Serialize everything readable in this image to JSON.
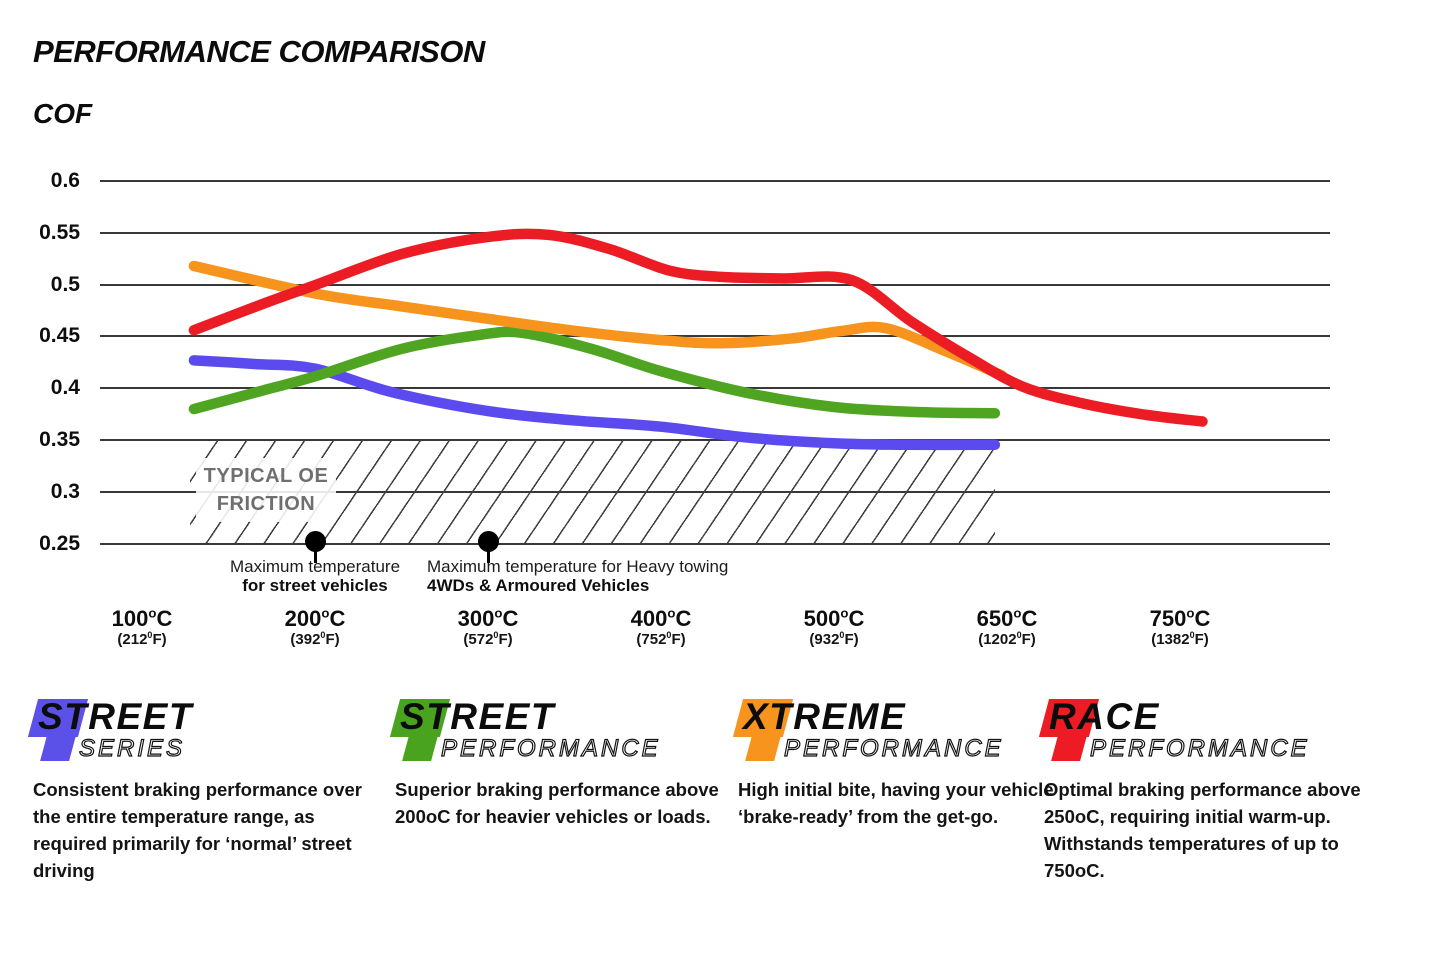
{
  "page": {
    "title": "PERFORMANCE COMPARISON",
    "y_axis_heading": "COF"
  },
  "chart_data": {
    "type": "line",
    "title": "PERFORMANCE COMPARISON",
    "ylabel": "COF",
    "ylim": [
      0.25,
      0.6
    ],
    "grid": "horizontal",
    "yticks": [
      "0.6",
      "0.55",
      "0.5",
      "0.45",
      "0.4",
      "0.35",
      "0.3",
      "0.25"
    ],
    "ytick_values": [
      0.6,
      0.55,
      0.5,
      0.45,
      0.4,
      0.35,
      0.3,
      0.25
    ],
    "x_categories": [
      {
        "c": "100",
        "f": "212"
      },
      {
        "c": "200",
        "f": "392"
      },
      {
        "c": "300",
        "f": "572"
      },
      {
        "c": "400",
        "f": "752"
      },
      {
        "c": "500",
        "f": "932"
      },
      {
        "c": "650",
        "f": "1202"
      },
      {
        "c": "750",
        "f": "1382"
      }
    ],
    "deg_c_glyph": "o",
    "deg_f_glyph": "0",
    "point_units": "[x_category_index, COF] where index 0=100C,1=200C,2=300C,3=400C,4=500C,5=650C,6=750C",
    "series": [
      {
        "name": "Street Series",
        "color": "#5b4bef",
        "points": [
          [
            0.3,
            0.427
          ],
          [
            0.65,
            0.4235
          ],
          [
            1.0,
            0.419
          ],
          [
            1.45,
            0.396
          ],
          [
            2.0,
            0.378
          ],
          [
            2.5,
            0.369
          ],
          [
            3.0,
            0.363
          ],
          [
            3.5,
            0.3525
          ],
          [
            4.0,
            0.347
          ],
          [
            4.4,
            0.3455
          ],
          [
            4.93,
            0.3455
          ]
        ]
      },
      {
        "name": "Street Performance",
        "color": "#4fa521",
        "points": [
          [
            0.3,
            0.38
          ],
          [
            0.7,
            0.398
          ],
          [
            1.0,
            0.4115
          ],
          [
            1.5,
            0.438
          ],
          [
            1.95,
            0.4515
          ],
          [
            2.2,
            0.4535
          ],
          [
            2.6,
            0.438
          ],
          [
            3.0,
            0.4165
          ],
          [
            3.5,
            0.3955
          ],
          [
            4.0,
            0.382
          ],
          [
            4.5,
            0.377
          ],
          [
            4.93,
            0.376
          ]
        ]
      },
      {
        "name": "Xtreme Performance",
        "color": "#f7941d",
        "points": [
          [
            0.3,
            0.518
          ],
          [
            1.0,
            0.4915
          ],
          [
            1.5,
            0.479
          ],
          [
            2.0,
            0.467
          ],
          [
            2.5,
            0.4555
          ],
          [
            3.0,
            0.4465
          ],
          [
            3.35,
            0.4435
          ],
          [
            3.75,
            0.448
          ],
          [
            4.05,
            0.4555
          ],
          [
            4.3,
            0.458
          ],
          [
            4.65,
            0.4355
          ],
          [
            4.97,
            0.4125
          ]
        ]
      },
      {
        "name": "Race Performance",
        "color": "#ec1c24",
        "points": [
          [
            0.3,
            0.456
          ],
          [
            0.7,
            0.4815
          ],
          [
            1.0,
            0.4995
          ],
          [
            1.5,
            0.5295
          ],
          [
            2.0,
            0.546
          ],
          [
            2.35,
            0.548
          ],
          [
            2.7,
            0.5345
          ],
          [
            3.05,
            0.5135
          ],
          [
            3.35,
            0.5075
          ],
          [
            3.7,
            0.506
          ],
          [
            4.1,
            0.5045
          ],
          [
            4.45,
            0.464
          ],
          [
            4.8,
            0.428
          ],
          [
            5.1,
            0.401
          ],
          [
            5.45,
            0.385
          ],
          [
            5.8,
            0.3745
          ],
          [
            6.13,
            0.368
          ]
        ]
      }
    ],
    "oe_zone": {
      "label_line1": "TYPICAL OE",
      "label_line2": "FRICTION",
      "cof_from": 0.25,
      "cof_to": 0.35,
      "x_from_index": 0.28,
      "x_to_index": 4.93
    },
    "markers": [
      {
        "at_index": 1,
        "cof": 0.25,
        "line1": "Maximum temperature",
        "line2": "for street vehicles",
        "align": "center"
      },
      {
        "at_index": 2,
        "cof": 0.25,
        "line1": "Maximum temperature for Heavy towing",
        "line2": "4WDs & Armoured Vehicles",
        "align": "left"
      }
    ],
    "legend_position": "bottom"
  },
  "legend": [
    {
      "word1": "STREET",
      "word2": "SERIES",
      "color": "#5b51e8",
      "description": "Consistent braking performance over the entire temperature range, as required primarily for ‘normal’ street driving"
    },
    {
      "word1": "STREET",
      "word2": "PERFORMANCE",
      "color": "#4aa31e",
      "description": "Superior braking performance above 200oC for heavier vehicles or loads."
    },
    {
      "word1": "XTREME",
      "word2": "PERFORMANCE",
      "color": "#f7941d",
      "description": "High initial bite, having your vehicle ‘brake-ready’ from the get-go."
    },
    {
      "word1": "RACE",
      "word2": "PERFORMANCE",
      "color": "#ed1c24",
      "description": "Optimal braking performance above 250oC, requiring initial warm-up. Withstands temperatures of up to 750oC."
    }
  ]
}
